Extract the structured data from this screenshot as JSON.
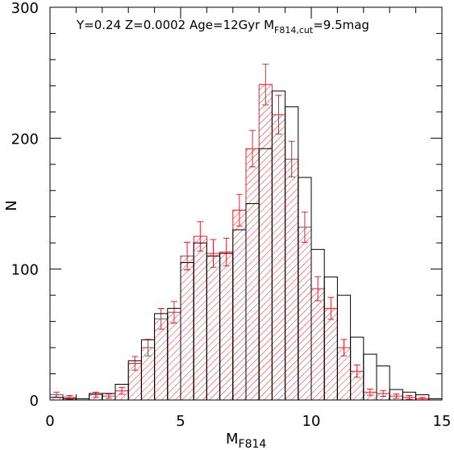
{
  "chart_data": {
    "type": "histogram",
    "annotation": {
      "text": "Y=0.24  Z=0.0002  Age=12Gyr  M",
      "sub": "F814,cut",
      "tail": "=9.5mag"
    },
    "x_label": {
      "text": "M",
      "sub": "F814"
    },
    "y_label": "N",
    "bins": [
      0,
      0.5,
      1,
      1.5,
      2,
      2.5,
      3,
      3.5,
      4,
      4.5,
      5,
      5.5,
      6,
      6.5,
      7,
      7.5,
      8,
      8.5,
      9,
      9.5,
      10,
      10.5,
      11,
      11.5,
      12,
      12.5,
      13,
      13.5,
      14,
      14.5,
      15
    ],
    "series": [
      {
        "color": "#e8222a",
        "hatch": true,
        "values": [
          4,
          2,
          0,
          4,
          3,
          7,
          28,
          40,
          62,
          67,
          110,
          125,
          112,
          113,
          145,
          192,
          241,
          218,
          184,
          132,
          85,
          70,
          40,
          22,
          6,
          5,
          3,
          2,
          1,
          0
        ],
        "errors": [
          2,
          1.4,
          0,
          2,
          1.7,
          2.6,
          5.3,
          6.3,
          7.9,
          8.2,
          10.5,
          11.2,
          10.6,
          10.6,
          12,
          13.9,
          15.5,
          14.8,
          13.6,
          11.5,
          9.2,
          8.4,
          6.3,
          4.7,
          2.4,
          2.2,
          1.7,
          1.4,
          1,
          0
        ]
      },
      {
        "color": "#000000",
        "hatch": false,
        "values": [
          2,
          1,
          1,
          5,
          5,
          12,
          30,
          46,
          66,
          70,
          105,
          120,
          110,
          112,
          130,
          150,
          192,
          236,
          224,
          170,
          115,
          94,
          80,
          48,
          35,
          26,
          8,
          6,
          4,
          1
        ]
      }
    ],
    "xlim": [
      0,
      15
    ],
    "ylim": [
      0,
      300
    ],
    "xticks": [
      0,
      5,
      10,
      15
    ],
    "yticks": [
      0,
      100,
      200,
      300
    ],
    "xminorticks": [
      1,
      2,
      3,
      4,
      6,
      7,
      8,
      9,
      11,
      12,
      13,
      14
    ],
    "yminorticks": [
      20,
      40,
      60,
      80,
      120,
      140,
      160,
      180,
      220,
      240,
      260,
      280
    ]
  }
}
